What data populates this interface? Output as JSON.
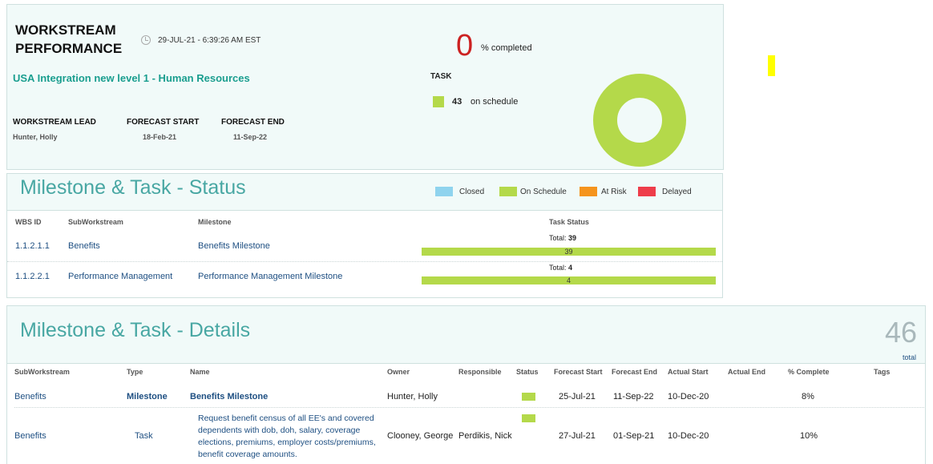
{
  "performance": {
    "title_line1": "WORKSTREAM",
    "title_line2": "PERFORMANCE",
    "timestamp": "29-JUL-21 - 6:39:26 AM EST",
    "workstream_name": "USA Integration new level 1 - Human Resources",
    "lead_label": "WORKSTREAM LEAD",
    "lead_value": "Hunter, Holly",
    "forecast_start_label": "FORECAST START",
    "forecast_start_value": "18-Feb-21",
    "forecast_end_label": "FORECAST END",
    "forecast_end_value": "11-Sep-22",
    "percent_completed": "0",
    "percent_label": "% completed",
    "task_label": "TASK",
    "task_on_schedule_count": "43",
    "task_on_schedule_label": "on schedule",
    "donut_color": "#b4d94a"
  },
  "status": {
    "title": "Milestone & Task - Status",
    "legend": [
      {
        "label": "Closed",
        "color": "#8fd3ee"
      },
      {
        "label": "On Schedule",
        "color": "#b4d94a"
      },
      {
        "label": "At Risk",
        "color": "#f5941d"
      },
      {
        "label": "Delayed",
        "color": "#ee3d4a"
      }
    ],
    "headers": {
      "wbs": "WBS ID",
      "sub": "SubWorkstream",
      "milestone": "Milestone",
      "task_status": "Task Status"
    },
    "rows": [
      {
        "wbs": "1.1.2.1.1",
        "sub": "Benefits",
        "milestone": "Benefits Milestone",
        "total_label": "Total:",
        "total": "39",
        "on_schedule": 39
      },
      {
        "wbs": "1.1.2.2.1",
        "sub": "Performance Management",
        "milestone": "Performance Management Milestone",
        "total_label": "Total:",
        "total": "4",
        "on_schedule": 4
      }
    ]
  },
  "details": {
    "title": "Milestone & Task - Details",
    "total_count": "46",
    "total_label": "total",
    "headers": {
      "sub": "SubWorkstream",
      "type": "Type",
      "name": "Name",
      "owner": "Owner",
      "responsible": "Responsible",
      "status": "Status",
      "forecast_start": "Forecast Start",
      "forecast_end": "Forecast End",
      "actual_start": "Actual Start",
      "actual_end": "Actual End",
      "pct": "% Complete",
      "tags": "Tags"
    },
    "rows": [
      {
        "sub": "Benefits",
        "type": "Milestone",
        "name": "Benefits Milestone",
        "owner": "Hunter, Holly",
        "responsible": "",
        "forecast_start": "25-Jul-21",
        "forecast_end": "11-Sep-22",
        "actual_start": "10-Dec-20",
        "actual_end": "",
        "pct": "8%"
      },
      {
        "sub": "Benefits",
        "type": "Task",
        "name_lines": [
          "Request benefit census of all EE's and covered",
          "dependents with dob, doh, salary, coverage",
          "elections, premiums, employer costs/premiums,",
          "benefit coverage amounts."
        ],
        "owner": "Clooney, George",
        "responsible": "Perdikis, Nick",
        "forecast_start": "27-Jul-21",
        "forecast_end": "01-Sep-21",
        "actual_start": "10-Dec-20",
        "actual_end": "",
        "pct": "10%"
      }
    ]
  }
}
